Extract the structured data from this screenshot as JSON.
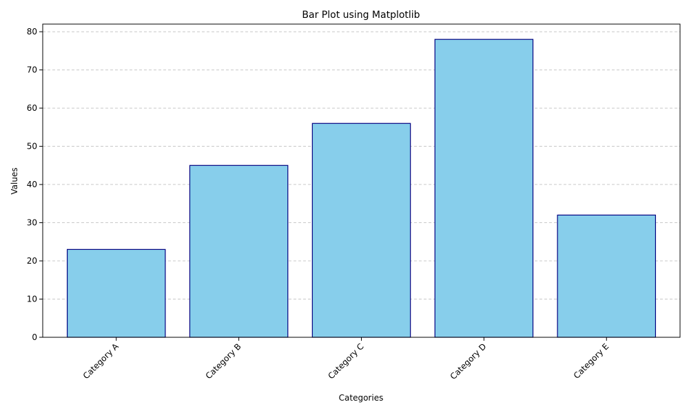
{
  "chart_data": {
    "type": "bar",
    "title": "Bar Plot using Matplotlib",
    "xlabel": "Categories",
    "ylabel": "Values",
    "categories": [
      "Category A",
      "Category B",
      "Category C",
      "Category D",
      "Category E"
    ],
    "values": [
      23,
      45,
      56,
      78,
      32
    ],
    "ylim": [
      0,
      82
    ],
    "yticks": [
      0,
      10,
      20,
      30,
      40,
      50,
      60,
      70,
      80
    ],
    "grid": "y-dashed",
    "bar_color": "#87ceeb",
    "edge_color": "#000080",
    "grid_color": "#c8c8c8",
    "xtick_rotation": 45
  }
}
